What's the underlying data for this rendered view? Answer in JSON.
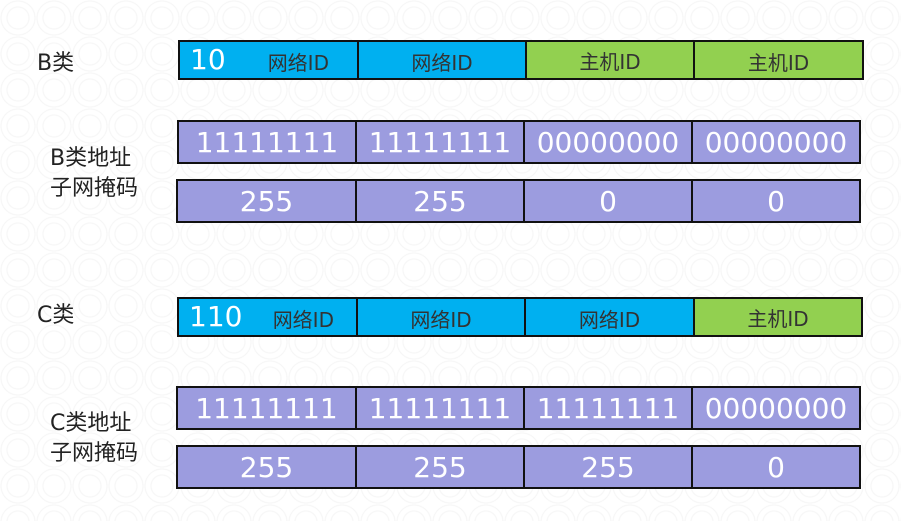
{
  "classB": {
    "label": "B类",
    "header": [
      {
        "prefix": "10",
        "text": "网络ID",
        "color": "#00b0f0"
      },
      {
        "text": "网络ID",
        "color": "#00b0f0"
      },
      {
        "text": "主机ID",
        "color": "#92d050"
      },
      {
        "text": "主机ID",
        "color": "#92d050"
      }
    ],
    "mask_label_line1": "B类地址",
    "mask_label_line2": "子网掩码",
    "binary": [
      "11111111",
      "11111111",
      "00000000",
      "00000000"
    ],
    "decimal": [
      "255",
      "255",
      "0",
      "0"
    ]
  },
  "classC": {
    "label": "C类",
    "header": [
      {
        "prefix": "110",
        "text": "网络ID",
        "color": "#00b0f0"
      },
      {
        "text": "网络ID",
        "color": "#00b0f0"
      },
      {
        "text": "网络ID",
        "color": "#00b0f0"
      },
      {
        "text": "主机ID",
        "color": "#92d050"
      }
    ],
    "mask_label_line1": "C类地址",
    "mask_label_line2": "子网掩码",
    "binary": [
      "11111111",
      "11111111",
      "11111111",
      "00000000"
    ],
    "decimal": [
      "255",
      "255",
      "255",
      "0"
    ]
  },
  "colors": {
    "network": "#00b0f0",
    "host": "#92d050",
    "mask": "#9c9cdf"
  }
}
